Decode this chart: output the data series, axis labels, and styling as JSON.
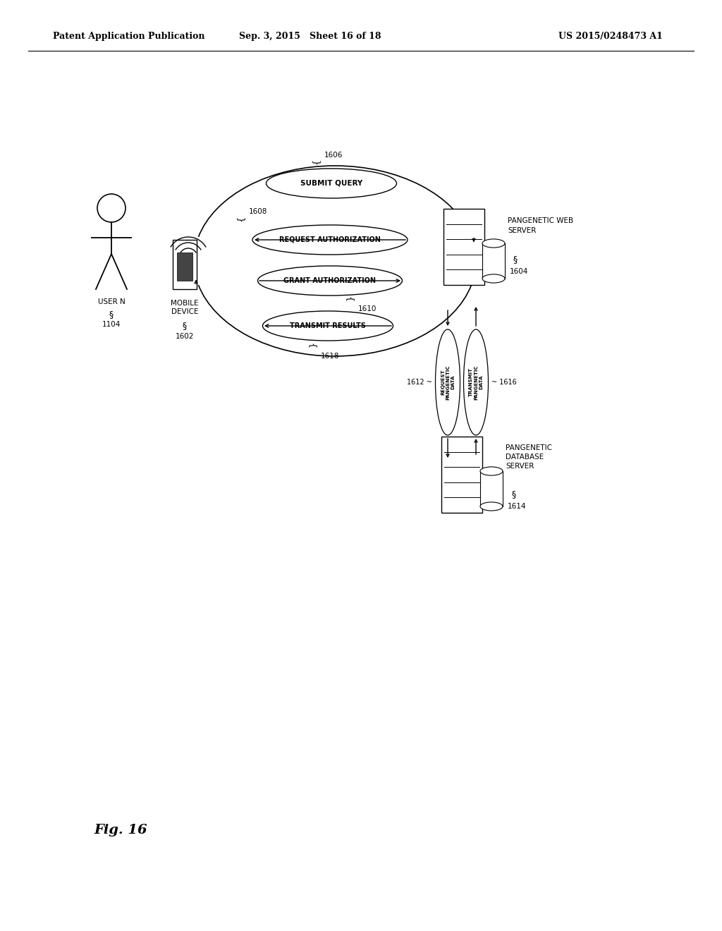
{
  "bg_color": "#ffffff",
  "header_left": "Patent Application Publication",
  "header_mid": "Sep. 3, 2015   Sheet 16 of 18",
  "header_right": "US 2015/0248473 A1",
  "fig_label": "Fig. 16"
}
